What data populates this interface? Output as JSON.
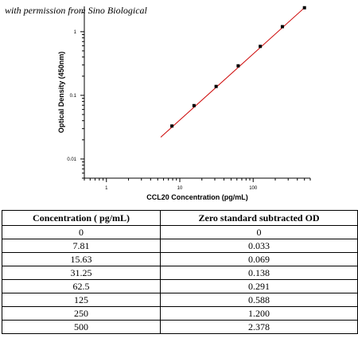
{
  "watermark": "with permission from Sino Biological",
  "chart_data": {
    "type": "scatter",
    "title": "",
    "xlabel": "CCL20 Concentration (pg/mL)",
    "ylabel": "Optical Density (450nm)",
    "xscale": "log",
    "yscale": "log",
    "xlim": [
      0.5,
      600
    ],
    "ylim": [
      0.005,
      2.5
    ],
    "x_ticks": [
      1,
      10,
      100
    ],
    "x_tick_labels": [
      "1",
      "10",
      "100"
    ],
    "y_ticks": [
      0.01,
      0.1,
      1
    ],
    "y_tick_labels": [
      "0.01",
      "0.1",
      "1"
    ],
    "grid": false,
    "series": [
      {
        "x": [
          7.81,
          15.63,
          31.25,
          62.5,
          125,
          250,
          500
        ],
        "y": [
          0.033,
          0.069,
          0.138,
          0.291,
          0.588,
          1.2,
          2.378
        ],
        "marker_color": "#000000"
      }
    ],
    "fit_line": {
      "x": [
        5.5,
        500
      ],
      "y": [
        0.022,
        2.378
      ],
      "color": "#cc0000"
    }
  },
  "table": {
    "headers": [
      "Concentration ( pg/mL)",
      "Zero standard subtracted OD"
    ],
    "rows": [
      [
        "0",
        "0"
      ],
      [
        "7.81",
        "0.033"
      ],
      [
        "15.63",
        "0.069"
      ],
      [
        "31.25",
        "0.138"
      ],
      [
        "62.5",
        "0.291"
      ],
      [
        "125",
        "0.588"
      ],
      [
        "250",
        "1.200"
      ],
      [
        "500",
        "2.378"
      ]
    ]
  }
}
